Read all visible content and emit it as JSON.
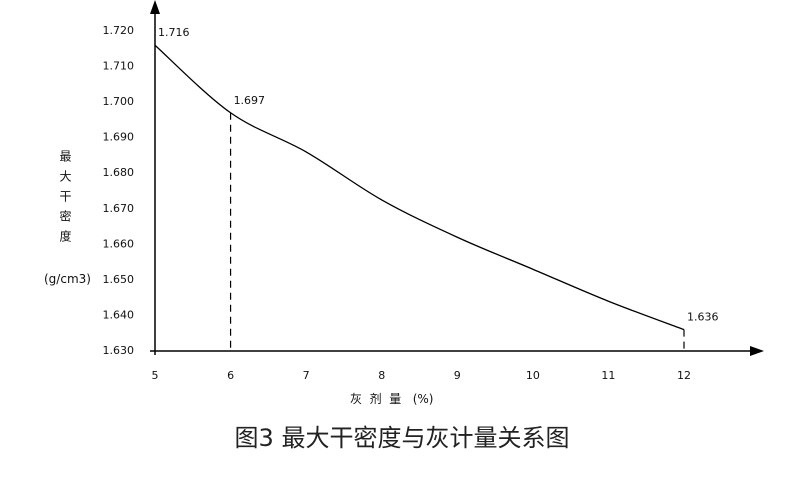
{
  "chart_data": {
    "type": "line",
    "y_axis_label": "最大干密度",
    "y_axis_unit": "(g/cm3)",
    "x_axis_label": "灰  剂  量   (%)",
    "caption": "图3 最大干密度与灰计量关系图",
    "x": [
      5,
      6,
      7,
      8,
      9,
      10,
      11,
      12
    ],
    "values": [
      1.716,
      1.697,
      1.686,
      1.6725,
      1.662,
      1.653,
      1.644,
      1.636
    ],
    "labeled_points": [
      0,
      1,
      7
    ],
    "dropline_points": [
      1,
      7
    ],
    "color": "#000000",
    "xlim": [
      5,
      12
    ],
    "xticks": [
      5,
      6,
      7,
      8,
      9,
      10,
      11,
      12
    ],
    "ylim": [
      1.63,
      1.72
    ],
    "yticks": [
      {
        "value": 1.63,
        "label": "1.630"
      },
      {
        "value": 1.64,
        "label": "1.640"
      },
      {
        "value": 1.65,
        "label": "1.650"
      },
      {
        "value": 1.66,
        "label": "1.660"
      },
      {
        "value": 1.67,
        "label": "1.670"
      },
      {
        "value": 1.68,
        "label": "1.680"
      },
      {
        "value": 1.69,
        "label": "1.690"
      },
      {
        "value": 1.7,
        "label": "1.700"
      },
      {
        "value": 1.71,
        "label": "1.710"
      },
      {
        "value": 1.72,
        "label": "1.720"
      }
    ]
  }
}
